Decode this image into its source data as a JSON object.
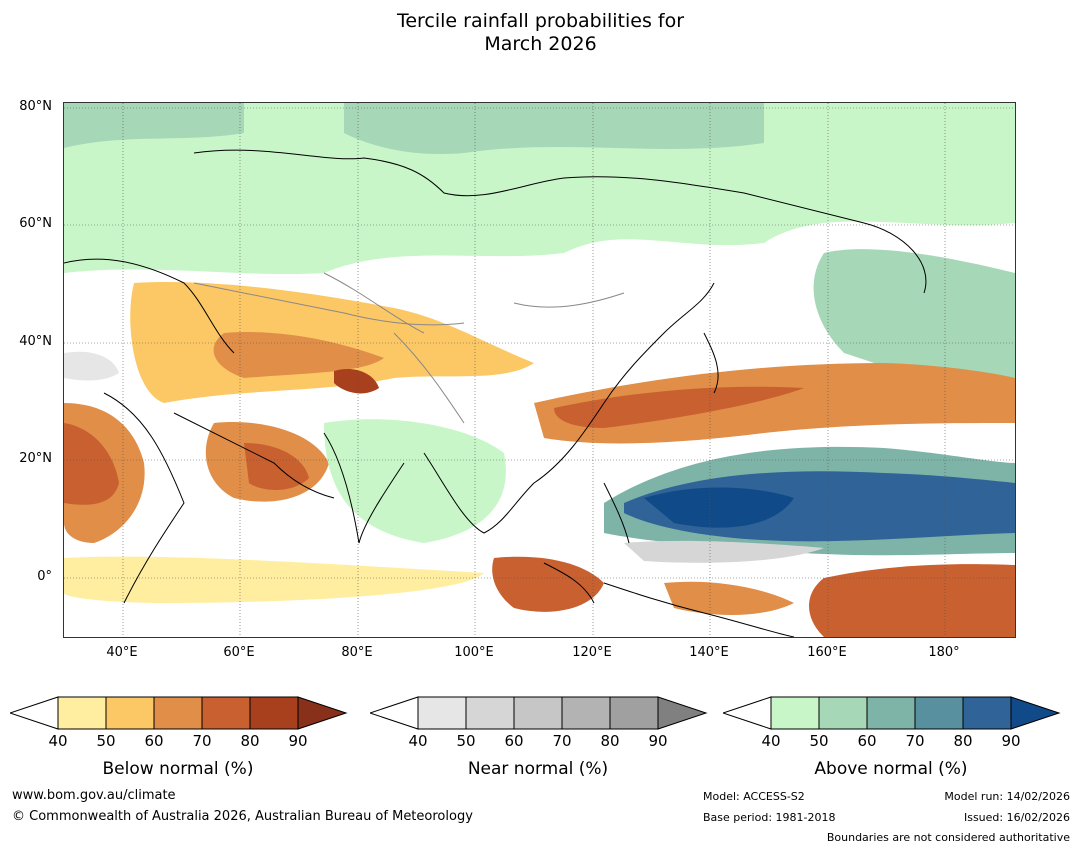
{
  "title_line1": "Tercile rainfall probabilities for",
  "title_line2": "March 2026",
  "map": {
    "lat_labels": [
      "80°N",
      "60°N",
      "40°N",
      "20°N",
      "0°"
    ],
    "lon_labels": [
      "40°E",
      "60°E",
      "80°E",
      "100°E",
      "120°E",
      "140°E",
      "160°E",
      "180°"
    ],
    "extent": {
      "lon_min": 30,
      "lon_max": 192,
      "lat_min": -10,
      "lat_max": 81
    }
  },
  "colorbars": [
    {
      "title": "Below normal (%)",
      "ticks": [
        "40",
        "50",
        "60",
        "70",
        "80",
        "90"
      ],
      "colors": [
        "#ffeea0",
        "#fcc866",
        "#e08e48",
        "#c86030",
        "#a8401e",
        "#88301a"
      ]
    },
    {
      "title": "Near normal (%)",
      "ticks": [
        "40",
        "50",
        "60",
        "70",
        "80",
        "90"
      ],
      "colors": [
        "#e6e6e6",
        "#d6d6d6",
        "#c6c6c6",
        "#b3b3b3",
        "#a0a0a0",
        "#808080"
      ]
    },
    {
      "title": "Above normal (%)",
      "ticks": [
        "40",
        "50",
        "60",
        "70",
        "80",
        "90"
      ],
      "colors": [
        "#c8f6c8",
        "#a6d8b8",
        "#7eb4a8",
        "#5890a0",
        "#306498",
        "#104a88"
      ]
    }
  ],
  "footer": {
    "url": "www.bom.gov.au/climate",
    "copyright": "© Commonwealth of Australia 2026, Australian Bureau of Meteorology",
    "model": "Model: ACCESS-S2",
    "base_period": "Base period: 1981-2018",
    "model_run": "Model run: 14/02/2026",
    "issued": "Issued: 16/02/2026",
    "boundaries_note": "Boundaries are not considered authoritative"
  }
}
